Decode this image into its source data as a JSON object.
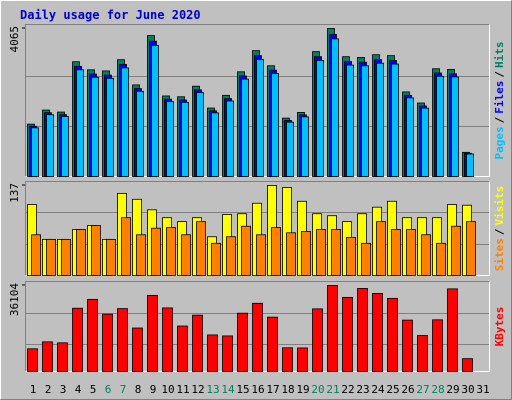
{
  "chart_data": [
    {
      "type": "bar",
      "title": "Daily usage for June 2020",
      "ylim": [
        0,
        4065
      ],
      "yticks": [
        4065
      ],
      "legend_separator": "/",
      "series": [
        {
          "name": "Hits",
          "color": "#00805c",
          "values": [
            1438,
            1825,
            1770,
            3152,
            2931,
            2900,
            3208,
            2516,
            3871,
            2212,
            2190,
            2480,
            1880,
            2230,
            2876,
            3457,
            3042,
            1604,
            1760,
            3429,
            4065,
            3291,
            3270,
            3346,
            3320,
            2323,
            2019,
            2960,
            2940,
            664,
            null
          ]
        },
        {
          "name": "Files",
          "color": "#0000ff",
          "values": [
            1380,
            1752,
            1699,
            3026,
            2814,
            2784,
            3080,
            2415,
            3716,
            2124,
            2102,
            2381,
            1805,
            2141,
            2761,
            3319,
            2920,
            1540,
            1690,
            3292,
            3902,
            3159,
            3139,
            3212,
            3187,
            2230,
            1938,
            2842,
            2822,
            637,
            null
          ]
        },
        {
          "name": "Pages",
          "color": "#00c0ff",
          "values": [
            1337,
            1697,
            1646,
            2931,
            2726,
            2697,
            2983,
            2340,
            3600,
            2057,
            2037,
            2306,
            1748,
            2074,
            2675,
            3215,
            2829,
            1492,
            1637,
            3189,
            3780,
            3061,
            3041,
            3112,
            3088,
            2160,
            1878,
            2753,
            2734,
            618,
            null
          ]
        }
      ]
    },
    {
      "type": "bar",
      "ylim": [
        0,
        137
      ],
      "yticks": [
        137
      ],
      "legend_separator": "/",
      "series": [
        {
          "name": "Visits",
          "color": "#ffff00",
          "values": [
            108,
            55,
            55,
            70,
            76,
            55,
            125,
            116,
            100,
            88,
            82,
            88,
            59,
            93,
            94,
            110,
            137,
            134,
            113,
            94,
            91,
            82,
            94,
            104,
            113,
            88,
            88,
            88,
            108,
            107,
            null
          ]
        },
        {
          "name": "Sites",
          "color": "#ff8000",
          "values": [
            62,
            55,
            55,
            70,
            76,
            55,
            88,
            62,
            72,
            73,
            62,
            82,
            49,
            59,
            75,
            62,
            73,
            65,
            67,
            70,
            70,
            58,
            49,
            82,
            70,
            70,
            62,
            49,
            75,
            82,
            null
          ]
        }
      ]
    },
    {
      "type": "bar",
      "ylim": [
        0,
        36104
      ],
      "yticks": [
        36104
      ],
      "categories": [
        "1",
        "2",
        "3",
        "4",
        "5",
        "6",
        "7",
        "8",
        "9",
        "10",
        "11",
        "12",
        "13",
        "14",
        "15",
        "16",
        "17",
        "18",
        "19",
        "20",
        "21",
        "22",
        "23",
        "24",
        "25",
        "26",
        "27",
        "28",
        "29",
        "30",
        "31"
      ],
      "category_label_colors": [
        "#000000",
        "#000000",
        "#000000",
        "#000000",
        "#000000",
        "#00805c",
        "#00805c",
        "#000000",
        "#000000",
        "#000000",
        "#000000",
        "#000000",
        "#00805c",
        "#00805c",
        "#000000",
        "#000000",
        "#000000",
        "#000000",
        "#000000",
        "#00805c",
        "#00805c",
        "#000000",
        "#000000",
        "#000000",
        "#000000",
        "#000000",
        "#00805c",
        "#00805c",
        "#000000",
        "#000000",
        "#000000"
      ],
      "series": [
        {
          "name": "KBytes",
          "color": "#ff0000",
          "values": [
            9545,
            12450,
            12035,
            26560,
            30294,
            24069,
            26400,
            18260,
            31954,
            26700,
            19090,
            23654,
            15354,
            14940,
            24484,
            28634,
            22824,
            9960,
            9900,
            26300,
            36104,
            31124,
            34859,
            32784,
            30709,
            21579,
            15100,
            21700,
            34700,
            5395,
            null
          ]
        }
      ]
    }
  ]
}
